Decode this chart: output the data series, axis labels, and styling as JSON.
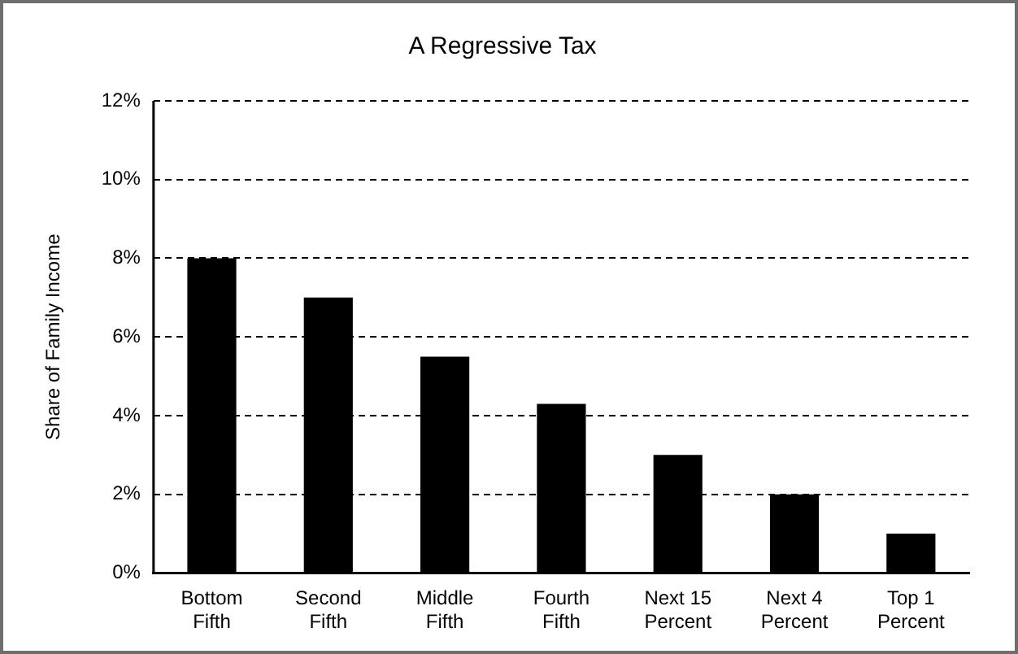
{
  "chart_data": {
    "type": "bar",
    "title": "A Regressive Tax",
    "ylabel": "Share of Family Income",
    "categories": [
      "Bottom Fifth",
      "Second Fifth",
      "Middle Fifth",
      "Fourth Fifth",
      "Next 15 Percent",
      "Next 4 Percent",
      "Top 1 Percent"
    ],
    "values": [
      8,
      7,
      5.5,
      4.3,
      3,
      2,
      1
    ],
    "color": "#000000",
    "ylim": [
      0,
      12
    ],
    "yticks": [
      {
        "value": 0,
        "label": "0%"
      },
      {
        "value": 2,
        "label": "2%"
      },
      {
        "value": 4,
        "label": "4%"
      },
      {
        "value": 6,
        "label": "6%"
      },
      {
        "value": 8,
        "label": "8%"
      },
      {
        "value": 10,
        "label": "10%"
      },
      {
        "value": 12,
        "label": "12%"
      }
    ],
    "grid": "y",
    "legend": false
  }
}
